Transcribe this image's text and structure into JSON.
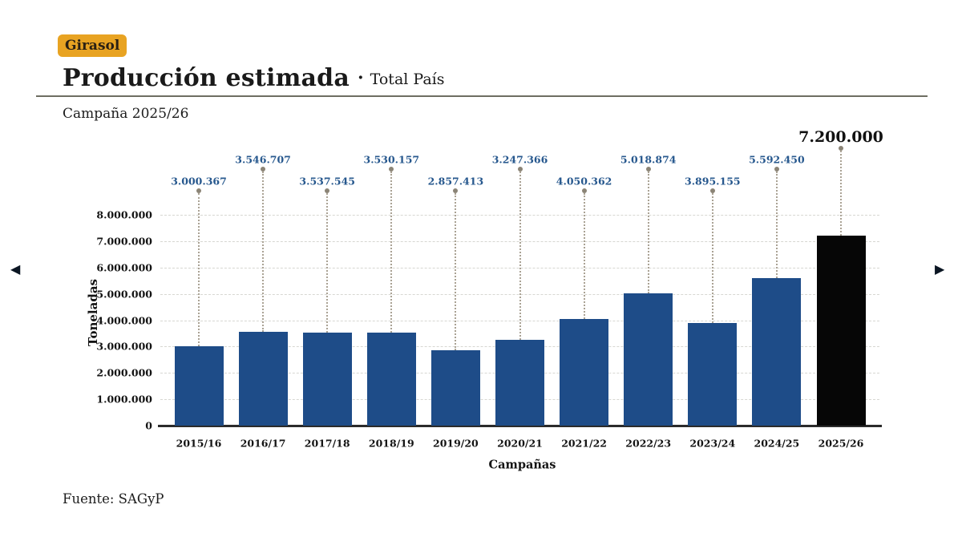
{
  "badge": {
    "label": "Girasol",
    "bg": "#e8a322",
    "text_color": "#2a2013"
  },
  "header": {
    "title": "Producción estimada",
    "separator": "·",
    "scope": "Total País",
    "campaign": "Campaña 2025/26"
  },
  "nav": {
    "prev_icon": "◀",
    "next_icon": "▶"
  },
  "footer": {
    "source": "Fuente: SAGyP"
  },
  "chart_data": {
    "type": "bar",
    "title": "Producción estimada · Total País",
    "subtitle": "Campaña 2025/26",
    "xlabel": "Campañas",
    "ylabel": "Toneladas",
    "ylim": [
      0,
      8000000
    ],
    "ytick_step": 1000000,
    "ytick_labels": [
      "0",
      "1.000.000",
      "2.000.000",
      "3.000.000",
      "4.000.000",
      "5.000.000",
      "6.000.000",
      "7.000.000",
      "8.000.000"
    ],
    "grid": true,
    "legend": "none",
    "categories": [
      "2015/16",
      "2016/17",
      "2017/18",
      "2018/19",
      "2019/20",
      "2020/21",
      "2021/22",
      "2022/23",
      "2023/24",
      "2024/25",
      "2025/26"
    ],
    "values": [
      3000367,
      3546707,
      3537545,
      3530157,
      2857413,
      3247366,
      4050362,
      5018874,
      3895155,
      5592450,
      7200000
    ],
    "value_labels": [
      "3.000.367",
      "3.546.707",
      "3.537.545",
      "3.530.157",
      "2.857.413",
      "3.247.366",
      "4.050.362",
      "5.018.874",
      "3.895.155",
      "5.592.450",
      "7.200.000"
    ],
    "highlight_index": 10,
    "bar_color": "#1e4c88",
    "highlight_bar_color": "#060606",
    "value_label_color": "#27588e",
    "highlight_value_label_color": "#111111",
    "leader_color": "#8b8476"
  }
}
